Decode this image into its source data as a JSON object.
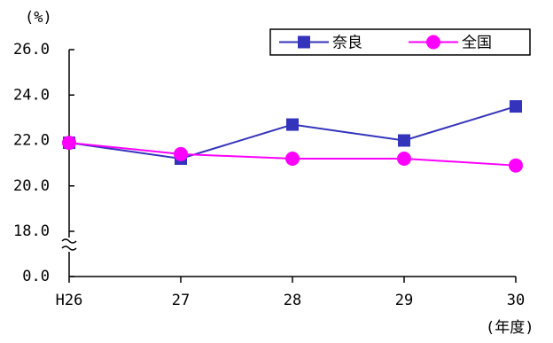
{
  "chart_data": {
    "type": "line",
    "y_unit": "(%)",
    "x_unit": "(年度)",
    "categories": [
      "H26",
      "27",
      "28",
      "29",
      "30"
    ],
    "series": [
      {
        "name": "奈良",
        "color": "#3333bb",
        "marker": "square",
        "values": [
          21.9,
          21.2,
          22.7,
          22.0,
          23.5
        ]
      },
      {
        "name": "全国",
        "color": "#ff00ff",
        "marker": "circle",
        "values": [
          21.9,
          21.4,
          21.2,
          21.2,
          20.9
        ]
      }
    ],
    "ylim": [
      0,
      26
    ],
    "axis_break": [
      0,
      18
    ],
    "yticks": [
      {
        "value": 0,
        "label": "0.0"
      },
      {
        "value": 18,
        "label": "18.0"
      },
      {
        "value": 20,
        "label": "20.0"
      },
      {
        "value": 22,
        "label": "22.0"
      },
      {
        "value": 24,
        "label": "24.0"
      },
      {
        "value": 26,
        "label": "26.0"
      }
    ],
    "legend": "top-right"
  }
}
